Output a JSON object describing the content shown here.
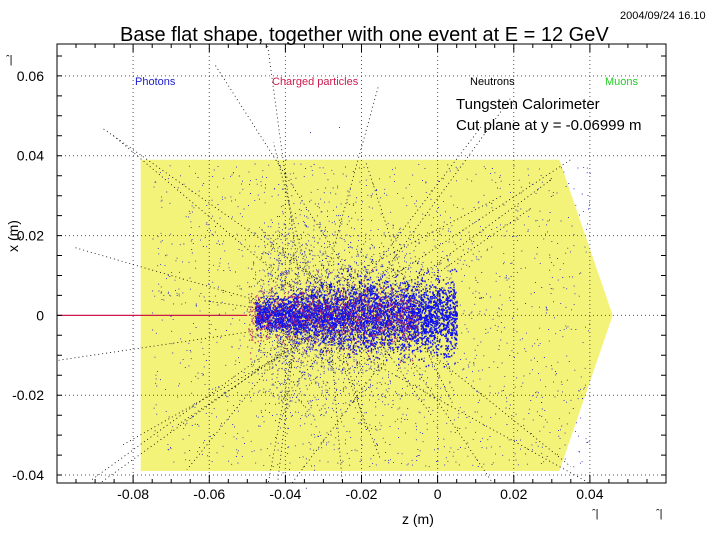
{
  "chart_data": {
    "type": "scatter",
    "title": "Base flat shape, together with one event at E = 12 GeV",
    "timestamp": "2004/09/24   16.10",
    "xlabel": "z (m)",
    "ylabel": "x (m)",
    "xlim": [
      -0.1,
      0.06
    ],
    "ylim": [
      -0.042,
      0.068
    ],
    "x_ticks": [
      -0.08,
      -0.06,
      -0.04,
      -0.02,
      0,
      0.02,
      0.04
    ],
    "x_tick_labels": [
      "-0.08",
      "-0.06",
      "-0.04",
      "-0.02",
      "0",
      "0.02",
      "0.04"
    ],
    "y_ticks": [
      0.06,
      0.04,
      0.02,
      0,
      -0.02,
      -0.04
    ],
    "y_tick_labels": [
      "0.06",
      "0.04",
      "0.02",
      "0",
      "-0.02",
      "-0.04"
    ],
    "grid": true,
    "annotations": [
      "Tungsten Calorimeter",
      "Cut plane at y = -0.06999 m"
    ],
    "legend": [
      {
        "name": "Photons",
        "color": "#1a1acc"
      },
      {
        "name": "Charged particles",
        "color": "#cc1a4d"
      },
      {
        "name": "Neutrons",
        "color": "#000000"
      },
      {
        "name": "Muons",
        "color": "#22cc22"
      }
    ],
    "detector_shape": {
      "name": "base flat shape",
      "color": "#f3f37a",
      "vertices_zx": [
        [
          -0.078,
          0.039
        ],
        [
          -0.078,
          -0.039
        ],
        [
          -0.061,
          -0.039
        ],
        [
          0.032,
          -0.039
        ],
        [
          0.046,
          0.0
        ],
        [
          0.032,
          0.039
        ],
        [
          -0.061,
          0.039
        ]
      ]
    },
    "event": {
      "energy": "12 GeV",
      "beam_entry_z": -0.1,
      "beam_x": 0.0,
      "shower_start_z": -0.05,
      "core_z_range": [
        -0.048,
        0.005
      ],
      "core_x_halfwidth": 0.008
    }
  },
  "corner_marks": {
    "top_left": "ˆ|",
    "bottom_right_1": "ˆ|",
    "bottom_right_2": "ˆ|"
  }
}
